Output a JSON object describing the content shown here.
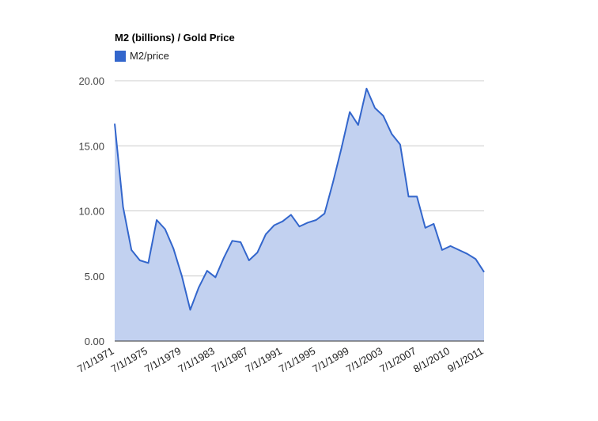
{
  "chart_data": {
    "type": "area",
    "title": "M2 (billions) / Gold Price",
    "legend": [
      {
        "name": "M2/price",
        "color": "#3366cc"
      }
    ],
    "legend_position": "top",
    "xlabel": "",
    "ylabel": "",
    "ylim": [
      0,
      20
    ],
    "yticks": [
      "0.00",
      "5.00",
      "10.00",
      "15.00",
      "20.00"
    ],
    "xtick_labels": [
      "7/1/1971",
      "7/1/1975",
      "7/1/1979",
      "7/1/1983",
      "7/1/1987",
      "7/1/1991",
      "7/1/1995",
      "7/1/1999",
      "7/1/2003",
      "7/1/2007",
      "8/1/2010",
      "9/1/2011"
    ],
    "grid": true,
    "series": [
      {
        "name": "M2/price",
        "color": "#3366cc",
        "fill": "#c2d1f0",
        "values": [
          16.7,
          10.3,
          7.0,
          6.2,
          6.0,
          9.3,
          8.6,
          7.1,
          5.0,
          2.4,
          4.1,
          5.4,
          4.9,
          6.4,
          7.7,
          7.6,
          6.2,
          6.8,
          8.2,
          8.9,
          9.2,
          9.7,
          8.8,
          9.1,
          9.3,
          9.8,
          12.2,
          14.8,
          17.6,
          16.6,
          19.4,
          17.9,
          17.3,
          15.9,
          15.1,
          11.1,
          11.1,
          8.7,
          9.0,
          7.0,
          7.3,
          7.0,
          6.7,
          6.3,
          5.3
        ]
      }
    ]
  },
  "colors": {
    "line": "#3366cc",
    "area": "#c2d1f0",
    "grid": "#cccccc",
    "baseline": "#333333"
  }
}
